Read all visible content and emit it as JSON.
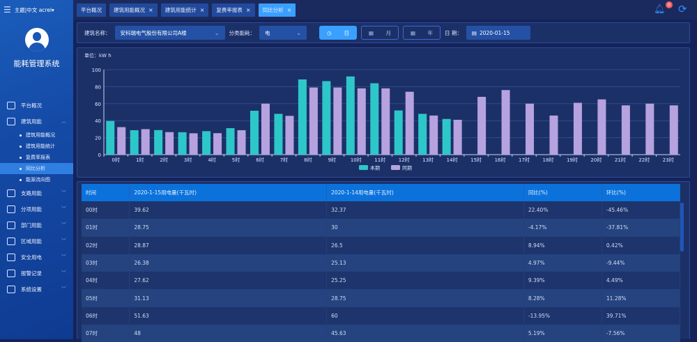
{
  "header": {
    "theme": "主题",
    "lang": "中文",
    "user": "acrel",
    "notification_count": "0"
  },
  "sidebar": {
    "system_name": "能耗管理系统",
    "items": [
      {
        "label": "平台概况",
        "icon": "monitor-icon"
      },
      {
        "label": "建筑用能",
        "icon": "building-icon",
        "expanded": true,
        "children": [
          {
            "label": "建筑用能概况"
          },
          {
            "label": "建筑用能统计"
          },
          {
            "label": "复费率报表"
          },
          {
            "label": "同比分析",
            "active": true
          },
          {
            "label": "能源流向图"
          }
        ]
      },
      {
        "label": "支路用能",
        "icon": "branch-icon"
      },
      {
        "label": "分项用能",
        "icon": "compass-icon"
      },
      {
        "label": "部门用能",
        "icon": "folder-icon"
      },
      {
        "label": "区域用能",
        "icon": "area-icon"
      },
      {
        "label": "安全用电",
        "icon": "shield-icon"
      },
      {
        "label": "报警记录",
        "icon": "document-icon"
      },
      {
        "label": "系统设置",
        "icon": "settings-icon"
      }
    ]
  },
  "tabs": [
    {
      "label": "平台概况",
      "closable": false
    },
    {
      "label": "建筑用能概况",
      "closable": true
    },
    {
      "label": "建筑用能统计",
      "closable": true
    },
    {
      "label": "复费率报表",
      "closable": true
    },
    {
      "label": "同比分析",
      "closable": true,
      "active": true
    }
  ],
  "filter": {
    "building_label": "建筑名称：",
    "building_value": "安科瑞电气股份有限公司A楼",
    "category_label": "分类能耗：",
    "category_value": "电",
    "day": "日",
    "month": "月",
    "year": "年",
    "date_label": "日 期：",
    "date_value": "2020-01-15"
  },
  "chart_data": {
    "type": "bar",
    "unit_label": "单位：kW h",
    "ylim": [
      0,
      100
    ],
    "yticks": [
      0,
      20,
      40,
      60,
      80,
      100
    ],
    "grid": true,
    "legend_placement": "bottom",
    "categories": [
      "0时",
      "1时",
      "2时",
      "3时",
      "4时",
      "5时",
      "6时",
      "7时",
      "8时",
      "9时",
      "10时",
      "11时",
      "12时",
      "13时",
      "14时",
      "15时",
      "16时",
      "17时",
      "18时",
      "19时",
      "20时",
      "21时",
      "22时",
      "23时"
    ],
    "series": [
      {
        "name": "本期",
        "color": "#2ec7c9",
        "values": [
          39.62,
          28.75,
          28.87,
          26.38,
          27.62,
          31.13,
          51.63,
          48,
          88.5,
          86.5,
          92,
          84,
          52,
          48,
          42,
          null,
          null,
          null,
          null,
          null,
          null,
          null,
          null,
          null
        ]
      },
      {
        "name": "同期",
        "color": "#b6a2de",
        "values": [
          32.37,
          30,
          26.5,
          25.13,
          25.25,
          28.75,
          60,
          45.63,
          79,
          79,
          78,
          78,
          74,
          46,
          41,
          68,
          76,
          60,
          46,
          61,
          65,
          58,
          60,
          58
        ]
      }
    ]
  },
  "table": {
    "headers": [
      "时间",
      "2020-1-15用电量(千瓦时)",
      "2020-1-14用电量(千瓦时)",
      "同比(%)",
      "环比(%)"
    ],
    "rows": [
      [
        "00时",
        "39.62",
        "32.37",
        "22.40%",
        "-45.46%"
      ],
      [
        "01时",
        "28.75",
        "30",
        "-4.17%",
        "-37.81%"
      ],
      [
        "02时",
        "28.87",
        "26.5",
        "8.94%",
        "0.42%"
      ],
      [
        "03时",
        "26.38",
        "25.13",
        "4.97%",
        "-9.44%"
      ],
      [
        "04时",
        "27.62",
        "25.25",
        "9.39%",
        "4.49%"
      ],
      [
        "05时",
        "31.13",
        "28.75",
        "8.28%",
        "11.28%"
      ],
      [
        "06时",
        "51.63",
        "60",
        "-13.95%",
        "39.71%"
      ],
      [
        "07时",
        "48",
        "45.63",
        "5.19%",
        "-7.56%"
      ]
    ]
  }
}
